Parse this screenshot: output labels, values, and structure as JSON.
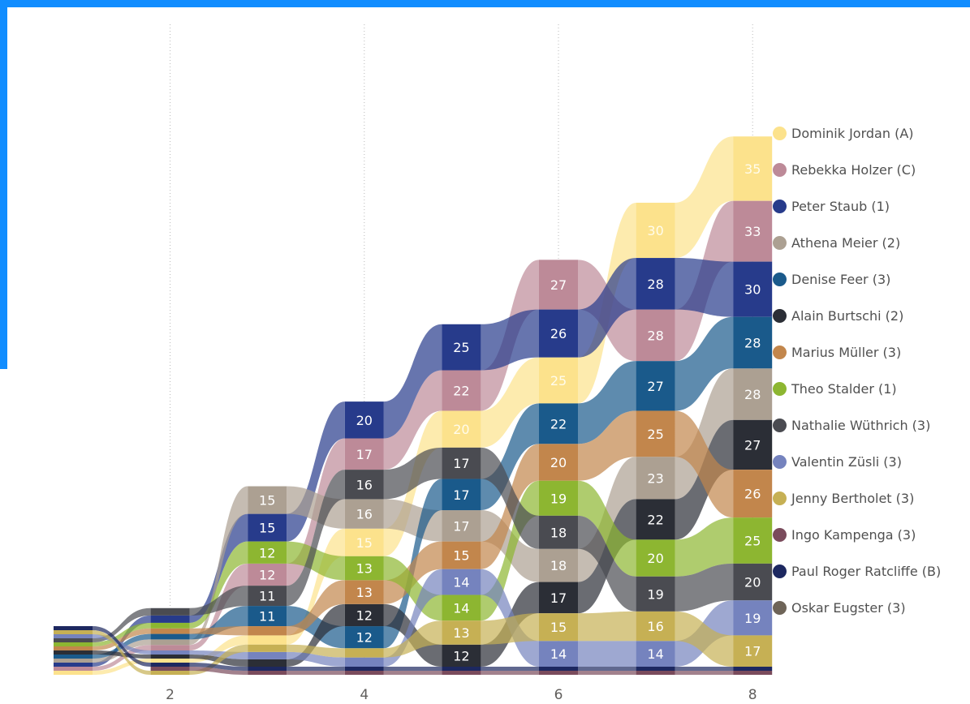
{
  "chart_data": {
    "type": "ribbon",
    "x": [
      1,
      2,
      3,
      4,
      5,
      6,
      7,
      8
    ],
    "xticks": [
      "2",
      "4",
      "6",
      "8"
    ],
    "grid": "vertical-dotted",
    "legend_position": "right",
    "series": [
      {
        "name": "Dominik Jordan (A)",
        "color": "#FCE28C",
        "values": [
          1,
          2,
          5,
          15,
          20,
          25,
          30,
          35
        ]
      },
      {
        "name": "Rebekka Holzer (C)",
        "color": "#BD8A98",
        "values": [
          1,
          3,
          12,
          17,
          22,
          27,
          28,
          33
        ]
      },
      {
        "name": "Peter Staub (1)",
        "color": "#273B8B",
        "values": [
          1,
          4,
          15,
          20,
          25,
          26,
          28,
          30
        ]
      },
      {
        "name": "Athena Meier (2)",
        "color": "#ACA092",
        "values": [
          1,
          3,
          15,
          16,
          17,
          18,
          23,
          28
        ]
      },
      {
        "name": "Denise Feer (3)",
        "color": "#1A5A8B",
        "values": [
          1,
          3,
          11,
          12,
          17,
          22,
          27,
          28
        ]
      },
      {
        "name": "Alain Burtschi (2)",
        "color": "#2B2E36",
        "values": [
          1,
          2,
          4,
          12,
          12,
          17,
          22,
          27
        ]
      },
      {
        "name": "Marius Müller (3)",
        "color": "#C2864C",
        "values": [
          1,
          3,
          5,
          13,
          15,
          20,
          25,
          26
        ]
      },
      {
        "name": "Theo Stalder (1)",
        "color": "#8DB631",
        "values": [
          1,
          3,
          12,
          13,
          14,
          19,
          20,
          25
        ]
      },
      {
        "name": "Nathalie Wüthrich (3)",
        "color": "#4A4B51",
        "values": [
          1,
          4,
          11,
          16,
          17,
          18,
          19,
          20
        ]
      },
      {
        "name": "Valentin Züsli (3)",
        "color": "#7583BE",
        "values": [
          1,
          2,
          4,
          5,
          14,
          14,
          14,
          19
        ]
      },
      {
        "name": "Jenny Bertholet (3)",
        "color": "#C6B054",
        "values": [
          1,
          1,
          4,
          5,
          13,
          15,
          16,
          17
        ]
      },
      {
        "name": "Ingo Kampenga (3)",
        "color": "#7A4B5C",
        "values": [
          0,
          1,
          1,
          1,
          1,
          1,
          1,
          1
        ]
      },
      {
        "name": "Paul Roger Ratcliffe (B)",
        "color": "#1D2860",
        "values": [
          1,
          1,
          1,
          1,
          1,
          1,
          1,
          1
        ]
      },
      {
        "name": "Oskar Eugster (3)",
        "color": "#6E6458",
        "values": [
          0,
          0,
          0,
          0,
          0,
          0,
          0,
          0
        ]
      }
    ]
  }
}
